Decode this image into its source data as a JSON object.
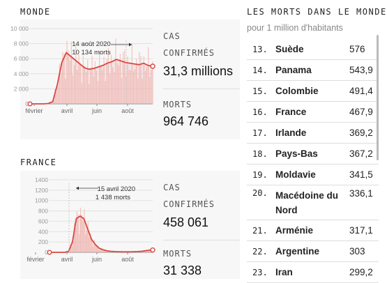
{
  "world": {
    "title": "MONDE",
    "cases_label_1": "CAS",
    "cases_label_2": "CONFIRMÉS",
    "cases_value": "31,3 millions",
    "deaths_label": "MORTS",
    "deaths_value": "964 746",
    "annotation_date": "14 août 2020",
    "annotation_value": "10 134 morts"
  },
  "france": {
    "title": "FRANCE",
    "cases_label_1": "CAS",
    "cases_label_2": "CONFIRMÉS",
    "cases_value": "458 061",
    "deaths_label": "MORTS",
    "deaths_value": "31 338",
    "annotation_date": "15 avril 2020",
    "annotation_value": "1 438 morts"
  },
  "ranking": {
    "title": "LES MORTS DANS LE MONDE",
    "subtitle": "pour 1 million d'habitants",
    "rows": [
      {
        "rank": "13.",
        "country": "Suède",
        "value": "576"
      },
      {
        "rank": "14.",
        "country": "Panama",
        "value": "543,9"
      },
      {
        "rank": "15.",
        "country": "Colombie",
        "value": "491,4"
      },
      {
        "rank": "16.",
        "country": "France",
        "value": "467,9"
      },
      {
        "rank": "17.",
        "country": "Irlande",
        "value": "369,2"
      },
      {
        "rank": "18.",
        "country": "Pays-Bas",
        "value": "367,2"
      },
      {
        "rank": "19.",
        "country": "Moldavie",
        "value": "341,5"
      },
      {
        "rank": "20.",
        "country": "Macédoine du Nord",
        "value": "336,1"
      },
      {
        "rank": "21.",
        "country": "Arménie",
        "value": "317,1"
      },
      {
        "rank": "22.",
        "country": "Argentine",
        "value": "303"
      },
      {
        "rank": "23.",
        "country": "Iran",
        "value": "299,2"
      }
    ]
  },
  "chart_data": [
    {
      "type": "area",
      "title": "MONDE",
      "ylim": [
        0,
        10000
      ],
      "y_ticks": [
        "10 000",
        "8 000",
        "6 000",
        "4 000",
        "2 000",
        "0"
      ],
      "x_ticks": [
        "février",
        "avril",
        "juin",
        "août"
      ],
      "series": [
        {
          "values": [
            0,
            0,
            0,
            0,
            50,
            300,
            2500,
            5500,
            6800,
            6300,
            5800,
            5300,
            4800,
            4600,
            4700,
            4900,
            5100,
            5400,
            5600,
            5900,
            5700,
            5500,
            5400,
            5300,
            5200,
            5400,
            5100,
            5000
          ]
        }
      ],
      "annotation": {
        "date": "14 août 2020",
        "value": "10 134 morts"
      }
    },
    {
      "type": "area",
      "title": "FRANCE",
      "ylim": [
        0,
        1400
      ],
      "y_ticks": [
        "1400",
        "1200",
        "1000",
        "800",
        "600",
        "400",
        "200",
        "0"
      ],
      "x_ticks": [
        "février",
        "avril",
        "juin",
        "août"
      ],
      "series": [
        {
          "values": [
            0,
            0,
            0,
            0,
            0,
            20,
            200,
            650,
            700,
            650,
            450,
            250,
            150,
            80,
            50,
            30,
            20,
            15,
            12,
            10,
            10,
            10,
            12,
            15,
            20,
            30,
            40,
            45
          ]
        }
      ],
      "annotation": {
        "date": "15 avril 2020",
        "value": "1 438 morts"
      }
    }
  ],
  "colors": {
    "line": "#d9473f",
    "bars": "#f3c3bf",
    "card": "#f7f7f7"
  }
}
